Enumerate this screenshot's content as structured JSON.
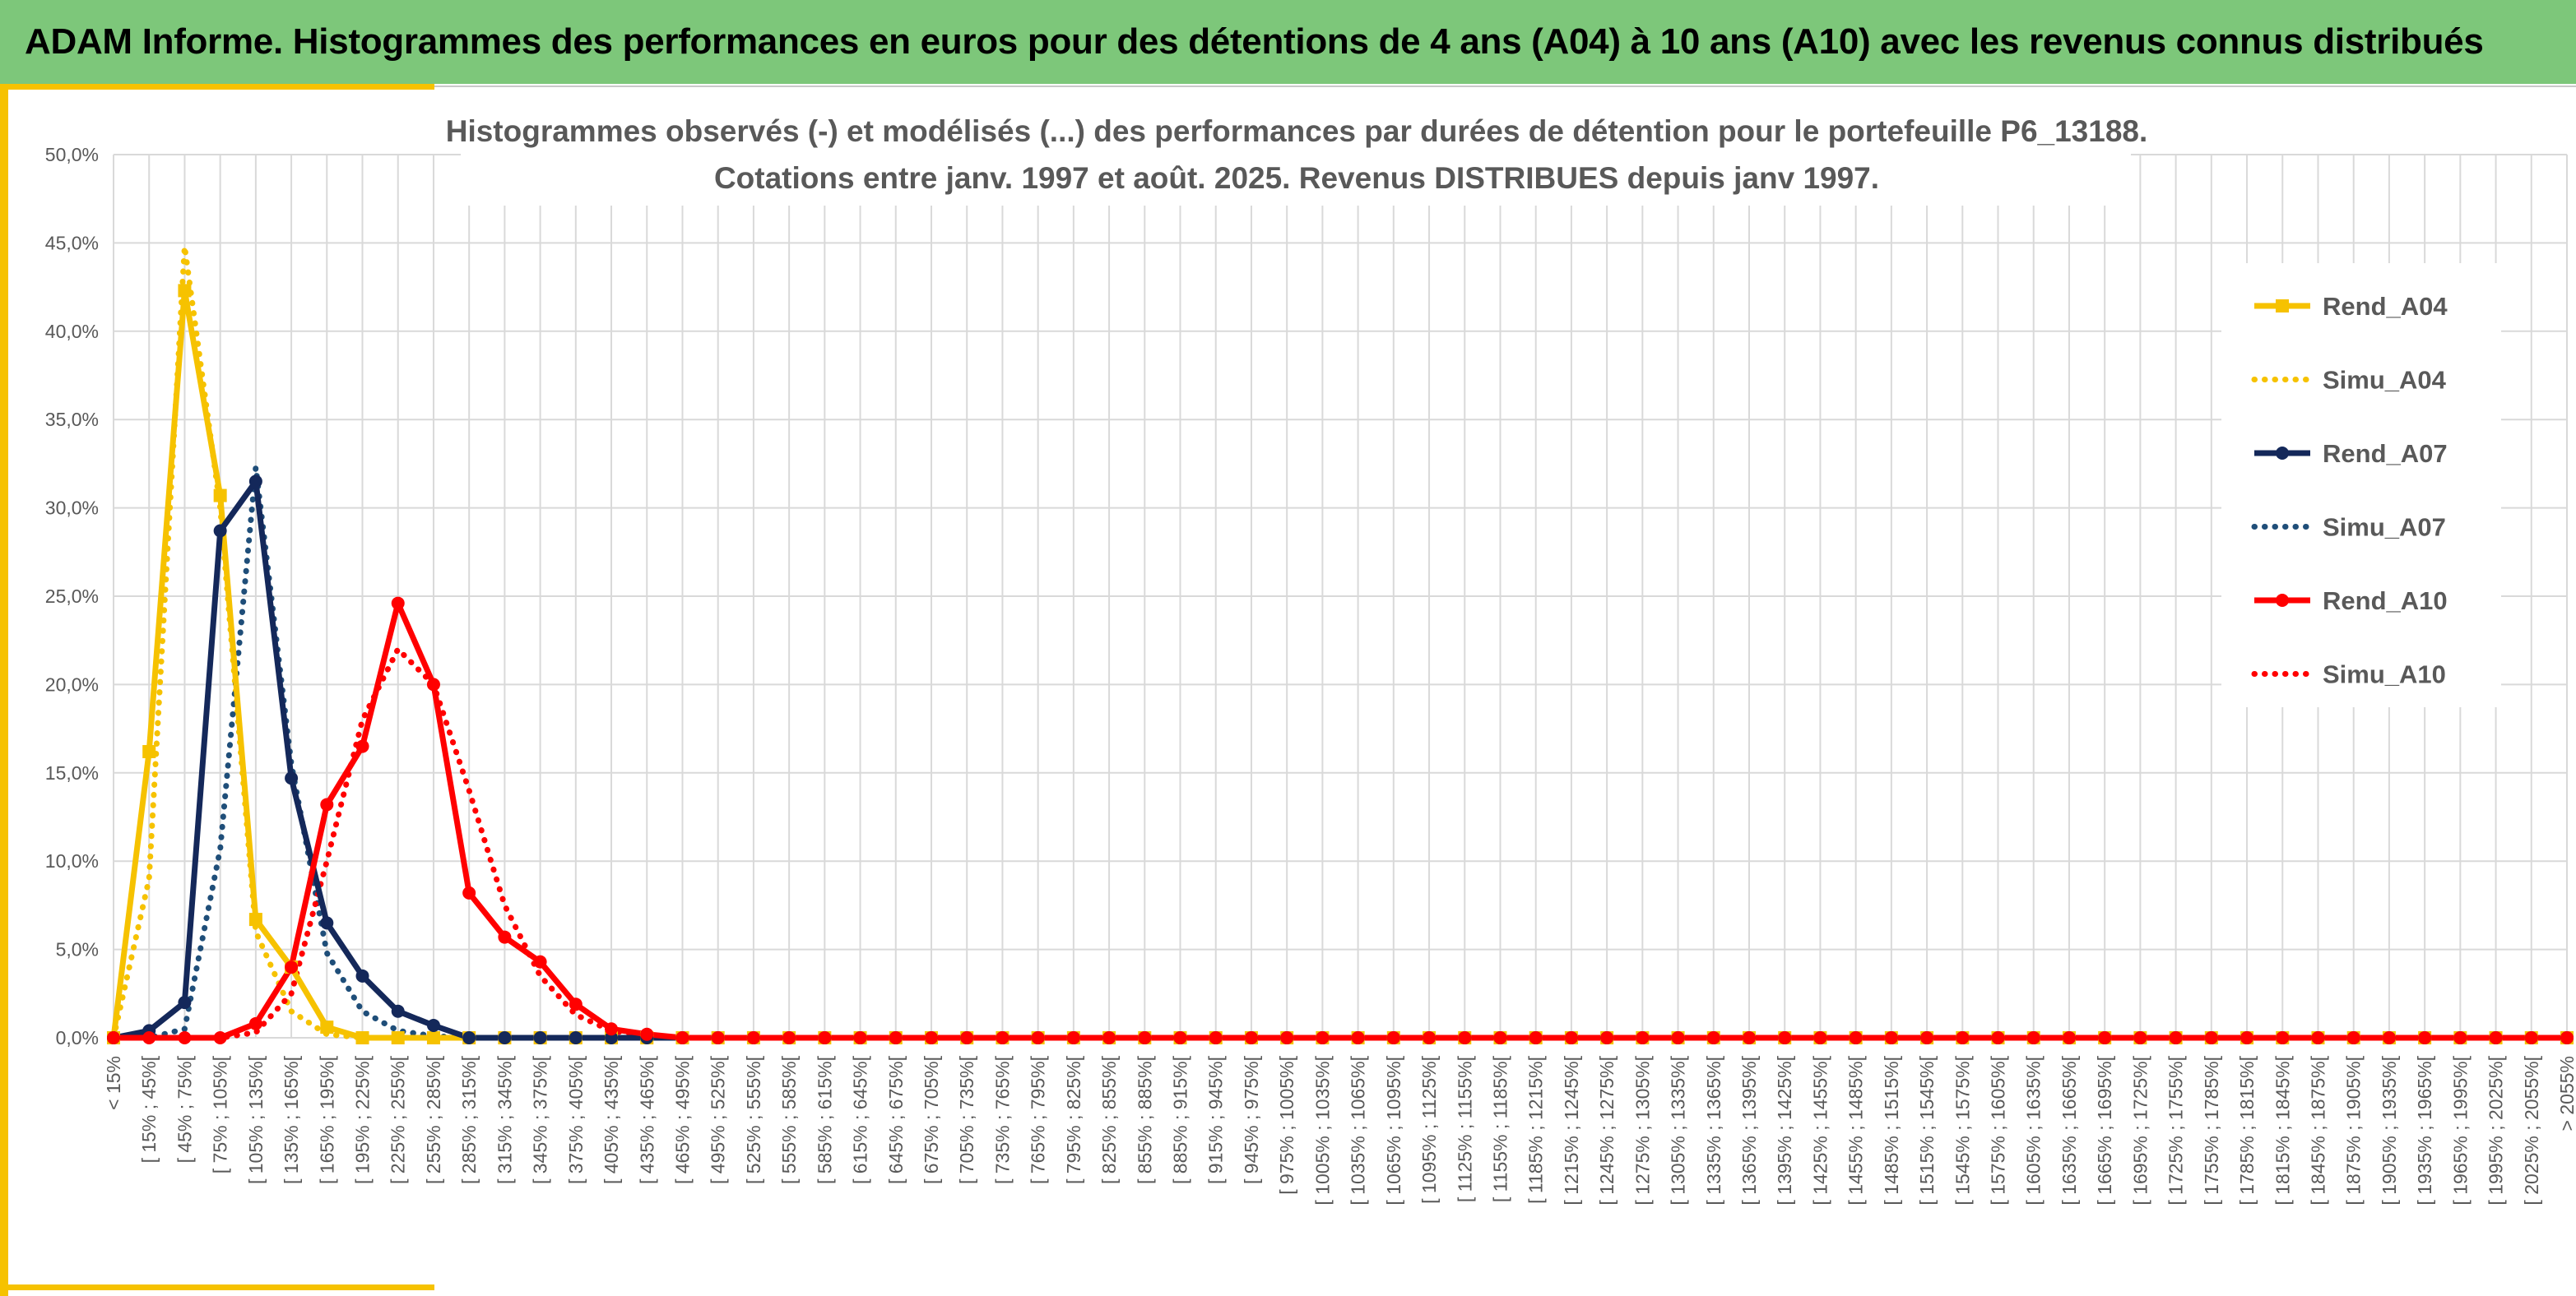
{
  "banner": {
    "title": "ADAM Informe. Histogrammes des performances en euros pour des détentions de 4 ans (A04) à 10 ans (A10) avec les revenus connus distribués"
  },
  "chart_data": {
    "type": "line",
    "title": [
      "Histogrammes observés (-) et modélisés (...) des performances par durées de détention pour le portefeuille P6_13188.",
      "Cotations entre janv. 1997 et août. 2025. Revenus DISTRIBUES depuis janv 1997."
    ],
    "xlabel": "",
    "ylabel": "",
    "ylim": [
      0,
      50
    ],
    "y_ticks": [
      "0,0%",
      "5,0%",
      "10,0%",
      "15,0%",
      "20,0%",
      "25,0%",
      "30,0%",
      "35,0%",
      "40,0%",
      "45,0%",
      "50,0%"
    ],
    "grid": true,
    "legend_position": "right",
    "categories": [
      "< 15%",
      "[ 15% ; 45%[",
      "[ 45% ; 75%[",
      "[ 75% ; 105%[",
      "[ 105% ; 135%[",
      "[ 135% ; 165%[",
      "[ 165% ; 195%[",
      "[ 195% ; 225%[",
      "[ 225% ; 255%[",
      "[ 255% ; 285%[",
      "[ 285% ; 315%[",
      "[ 315% ; 345%[",
      "[ 345% ; 375%[",
      "[ 375% ; 405%[",
      "[ 405% ; 435%[",
      "[ 435% ; 465%[",
      "[ 465% ; 495%[",
      "[ 495% ; 525%[",
      "[ 525% ; 555%[",
      "[ 555% ; 585%[",
      "[ 585% ; 615%[",
      "[ 615% ; 645%[",
      "[ 645% ; 675%[",
      "[ 675% ; 705%[",
      "[ 705% ; 735%[",
      "[ 735% ; 765%[",
      "[ 765% ; 795%[",
      "[ 795% ; 825%[",
      "[ 825% ; 855%[",
      "[ 855% ; 885%[",
      "[ 885% ; 915%[",
      "[ 915% ; 945%[",
      "[ 945% ; 975%[",
      "[ 975% ; 1005%[",
      "[ 1005% ; 1035%[",
      "[ 1035% ; 1065%[",
      "[ 1065% ; 1095%[",
      "[ 1095% ; 1125%[",
      "[ 1125% ; 1155%[",
      "[ 1155% ; 1185%[",
      "[ 1185% ; 1215%[",
      "[ 1215% ; 1245%[",
      "[ 1245% ; 1275%[",
      "[ 1275% ; 1305%[",
      "[ 1305% ; 1335%[",
      "[ 1335% ; 1365%[",
      "[ 1365% ; 1395%[",
      "[ 1395% ; 1425%[",
      "[ 1425% ; 1455%[",
      "[ 1455% ; 1485%[",
      "[ 1485% ; 1515%[",
      "[ 1515% ; 1545%[",
      "[ 1545% ; 1575%[",
      "[ 1575% ; 1605%[",
      "[ 1605% ; 1635%[",
      "[ 1635% ; 1665%[",
      "[ 1665% ; 1695%[",
      "[ 1695% ; 1725%[",
      "[ 1725% ; 1755%[",
      "[ 1755% ; 1785%[",
      "[ 1785% ; 1815%[",
      "[ 1815% ; 1845%[",
      "[ 1845% ; 1875%[",
      "[ 1875% ; 1905%[",
      "[ 1905% ; 1935%[",
      "[ 1935% ; 1965%[",
      "[ 1965% ; 1995%[",
      "[ 1995% ; 2025%[",
      "[ 2025% ; 2055%[",
      "> 2055%"
    ],
    "series": [
      {
        "name": "Rend_A04",
        "style": "solid",
        "marker": "square",
        "color": "#f6c200",
        "values": [
          0.0,
          16.2,
          42.3,
          30.7,
          6.7,
          4.0,
          0.6,
          0.0,
          0.0,
          0.0,
          0.0,
          0.0,
          0.0,
          0.0,
          0.0,
          0.0,
          0.0,
          0.0,
          0.0,
          0.0,
          0.0,
          0.0,
          0.0,
          0.0,
          0.0,
          0.0,
          0.0,
          0.0,
          0.0,
          0.0,
          0.0,
          0.0,
          0.0,
          0.0,
          0.0,
          0.0,
          0.0,
          0.0,
          0.0,
          0.0,
          0.0,
          0.0,
          0.0,
          0.0,
          0.0,
          0.0,
          0.0,
          0.0,
          0.0,
          0.0,
          0.0,
          0.0,
          0.0,
          0.0,
          0.0,
          0.0,
          0.0,
          0.0,
          0.0,
          0.0,
          0.0,
          0.0,
          0.0,
          0.0,
          0.0,
          0.0,
          0.0,
          0.0,
          0.0,
          0.0
        ]
      },
      {
        "name": "Simu_A04",
        "style": "dotted",
        "marker": "none",
        "color": "#f6c200",
        "values": [
          0.0,
          9.0,
          44.8,
          30.0,
          6.0,
          1.5,
          0.2,
          0.0,
          0.0,
          0.0,
          0.0,
          0.0,
          0.0,
          0.0,
          0.0,
          0.0,
          0.0,
          0.0,
          0.0,
          0.0,
          0.0,
          0.0,
          0.0,
          0.0,
          0.0,
          0.0,
          0.0,
          0.0,
          0.0,
          0.0,
          0.0,
          0.0,
          0.0,
          0.0,
          0.0,
          0.0,
          0.0,
          0.0,
          0.0,
          0.0,
          0.0,
          0.0,
          0.0,
          0.0,
          0.0,
          0.0,
          0.0,
          0.0,
          0.0,
          0.0,
          0.0,
          0.0,
          0.0,
          0.0,
          0.0,
          0.0,
          0.0,
          0.0,
          0.0,
          0.0,
          0.0,
          0.0,
          0.0,
          0.0,
          0.0,
          0.0,
          0.0,
          0.0,
          0.0,
          0.0
        ]
      },
      {
        "name": "Rend_A07",
        "style": "solid",
        "marker": "circle",
        "color": "#14285a",
        "values": [
          0.0,
          0.4,
          2.0,
          28.7,
          31.5,
          14.7,
          6.5,
          3.5,
          1.5,
          0.7,
          0.0,
          0.0,
          0.0,
          0.0,
          0.0,
          0.0,
          0.0,
          0.0,
          0.0,
          0.0,
          0.0,
          0.0,
          0.0,
          0.0,
          0.0,
          0.0,
          0.0,
          0.0,
          0.0,
          0.0,
          0.0,
          0.0,
          0.0,
          0.0,
          0.0,
          0.0,
          0.0,
          0.0,
          0.0,
          0.0,
          0.0,
          0.0,
          0.0,
          0.0,
          0.0,
          0.0,
          0.0,
          0.0,
          0.0,
          0.0,
          0.0,
          0.0,
          0.0,
          0.0,
          0.0,
          0.0,
          0.0,
          0.0,
          0.0,
          0.0,
          0.0,
          0.0,
          0.0,
          0.0,
          0.0,
          0.0,
          0.0,
          0.0,
          0.0,
          0.0
        ]
      },
      {
        "name": "Simu_A07",
        "style": "dotted",
        "marker": "none",
        "color": "#1f4e79",
        "values": [
          0.0,
          0.0,
          0.5,
          10.7,
          32.3,
          15.5,
          4.8,
          1.5,
          0.4,
          0.1,
          0.0,
          0.0,
          0.0,
          0.0,
          0.0,
          0.0,
          0.0,
          0.0,
          0.0,
          0.0,
          0.0,
          0.0,
          0.0,
          0.0,
          0.0,
          0.0,
          0.0,
          0.0,
          0.0,
          0.0,
          0.0,
          0.0,
          0.0,
          0.0,
          0.0,
          0.0,
          0.0,
          0.0,
          0.0,
          0.0,
          0.0,
          0.0,
          0.0,
          0.0,
          0.0,
          0.0,
          0.0,
          0.0,
          0.0,
          0.0,
          0.0,
          0.0,
          0.0,
          0.0,
          0.0,
          0.0,
          0.0,
          0.0,
          0.0,
          0.0,
          0.0,
          0.0,
          0.0,
          0.0,
          0.0,
          0.0,
          0.0,
          0.0,
          0.0,
          0.0
        ]
      },
      {
        "name": "Rend_A10",
        "style": "solid",
        "marker": "circle",
        "color": "#ff0000",
        "values": [
          0.0,
          0.0,
          0.0,
          0.0,
          0.8,
          4.0,
          13.2,
          16.5,
          24.6,
          20.0,
          8.2,
          5.7,
          4.3,
          1.9,
          0.5,
          0.2,
          0.0,
          0.0,
          0.0,
          0.0,
          0.0,
          0.0,
          0.0,
          0.0,
          0.0,
          0.0,
          0.0,
          0.0,
          0.0,
          0.0,
          0.0,
          0.0,
          0.0,
          0.0,
          0.0,
          0.0,
          0.0,
          0.0,
          0.0,
          0.0,
          0.0,
          0.0,
          0.0,
          0.0,
          0.0,
          0.0,
          0.0,
          0.0,
          0.0,
          0.0,
          0.0,
          0.0,
          0.0,
          0.0,
          0.0,
          0.0,
          0.0,
          0.0,
          0.0,
          0.0,
          0.0,
          0.0,
          0.0,
          0.0,
          0.0,
          0.0,
          0.0,
          0.0,
          0.0,
          0.0
        ]
      },
      {
        "name": "Simu_A10",
        "style": "dotted",
        "marker": "none",
        "color": "#ff0000",
        "values": [
          0.0,
          0.0,
          0.0,
          0.0,
          0.3,
          2.5,
          10.0,
          18.0,
          22.0,
          20.0,
          14.0,
          7.5,
          3.5,
          1.3,
          0.4,
          0.1,
          0.0,
          0.0,
          0.0,
          0.0,
          0.0,
          0.0,
          0.0,
          0.0,
          0.0,
          0.0,
          0.0,
          0.0,
          0.0,
          0.0,
          0.0,
          0.0,
          0.0,
          0.0,
          0.0,
          0.0,
          0.0,
          0.0,
          0.0,
          0.0,
          0.0,
          0.0,
          0.0,
          0.0,
          0.0,
          0.0,
          0.0,
          0.0,
          0.0,
          0.0,
          0.0,
          0.0,
          0.0,
          0.0,
          0.0,
          0.0,
          0.0,
          0.0,
          0.0,
          0.0,
          0.0,
          0.0,
          0.0,
          0.0,
          0.0,
          0.0,
          0.0,
          0.0,
          0.0,
          0.0
        ]
      }
    ]
  }
}
